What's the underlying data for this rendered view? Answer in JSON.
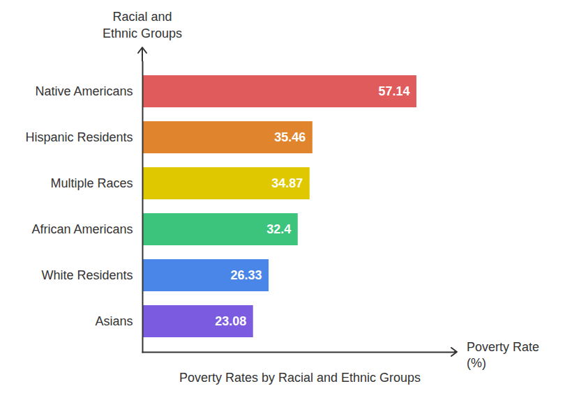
{
  "chart_data": {
    "type": "bar",
    "orientation": "horizontal",
    "title": "Poverty Rates by Racial and Ethnic Groups",
    "x_label": "Poverty Rate (%)",
    "y_label": "Racial and Ethnic Groups",
    "categories": [
      "Native Americans",
      "Hispanic Residents",
      "Multiple Races",
      "African Americans",
      "White Residents",
      "Asians"
    ],
    "values": [
      57.14,
      35.46,
      34.87,
      32.4,
      26.33,
      23.08
    ],
    "colors": [
      "#e05c5c",
      "#e0852e",
      "#e0c800",
      "#3cc47c",
      "#4a86e8",
      "#7b5ce0"
    ],
    "xlim": [
      0,
      65
    ],
    "data_labels": true,
    "tick_labels": "y"
  }
}
